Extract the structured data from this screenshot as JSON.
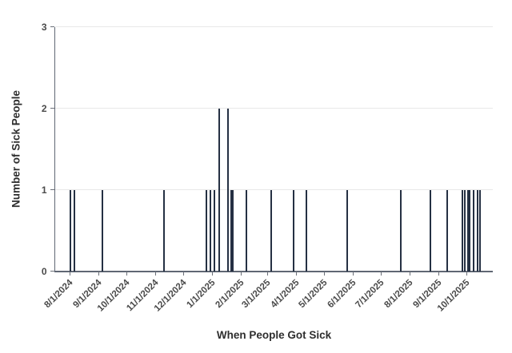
{
  "page": {
    "background": "#ffffff"
  },
  "chart_data": {
    "type": "bar",
    "title": "",
    "xlabel": "When People Got Sick",
    "ylabel": "Number of Sick People",
    "ylim": [
      0,
      3
    ],
    "y_ticks": [
      0,
      1,
      2,
      3
    ],
    "grid": "horizontal",
    "legend": "none",
    "x_domain": {
      "start": "7/16/2024",
      "end": "10/29/2025"
    },
    "x_tick_labels": [
      "8/1/2024",
      "9/1/2024",
      "10/1/2024",
      "11/1/2024",
      "12/1/2024",
      "1/1/2025",
      "2/1/2025",
      "3/1/2025",
      "4/1/2025",
      "5/1/2025",
      "6/1/2025",
      "7/1/2025",
      "8/1/2025",
      "9/1/2025",
      "10/1/2025"
    ],
    "points": [
      {
        "date": "8/2/2024",
        "count": 1
      },
      {
        "date": "8/6/2024",
        "count": 1
      },
      {
        "date": "9/5/2024",
        "count": 1
      },
      {
        "date": "11/10/2024",
        "count": 1
      },
      {
        "date": "12/26/2024",
        "count": 1
      },
      {
        "date": "12/30/2024",
        "count": 1
      },
      {
        "date": "1/3/2025",
        "count": 1
      },
      {
        "date": "1/8/2025",
        "count": 2
      },
      {
        "date": "1/18/2025",
        "count": 2
      },
      {
        "date": "1/21/2025",
        "count": 1
      },
      {
        "date": "1/23/2025",
        "count": 1
      },
      {
        "date": "2/7/2025",
        "count": 1
      },
      {
        "date": "3/5/2025",
        "count": 1
      },
      {
        "date": "3/29/2025",
        "count": 1
      },
      {
        "date": "4/12/2025",
        "count": 1
      },
      {
        "date": "5/26/2025",
        "count": 1
      },
      {
        "date": "7/22/2025",
        "count": 1
      },
      {
        "date": "8/23/2025",
        "count": 1
      },
      {
        "date": "9/10/2025",
        "count": 1
      },
      {
        "date": "9/26/2025",
        "count": 1
      },
      {
        "date": "9/29/2025",
        "count": 1
      },
      {
        "date": "10/2/2025",
        "count": 1
      },
      {
        "date": "10/4/2025",
        "count": 1
      },
      {
        "date": "10/8/2025",
        "count": 1
      },
      {
        "date": "10/13/2025",
        "count": 1
      },
      {
        "date": "10/15/2025",
        "count": 1
      }
    ],
    "colors": {
      "bar": "#253043",
      "grid": "#e8e8e8",
      "axis": "#606774",
      "tick_label": "#4a4a4a",
      "axis_title": "#2e2e2e",
      "background": "#ffffff"
    }
  }
}
